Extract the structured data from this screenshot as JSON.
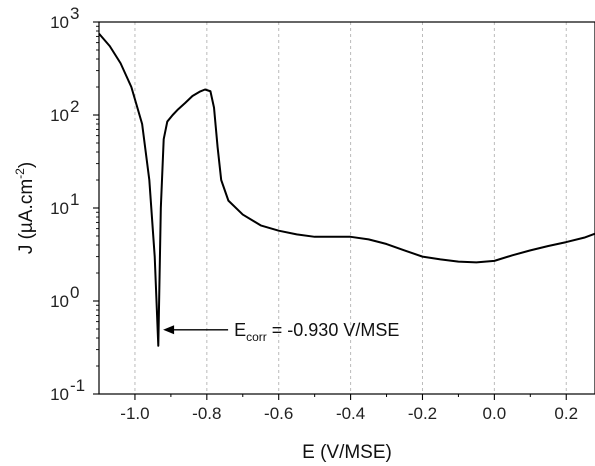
{
  "chart_data": {
    "type": "line",
    "xlabel": "E (V/MSE)",
    "ylabel": "J (µA.cm⁻²)",
    "ylabel_base": "J (µA.cm",
    "ylabel_exp": "-2",
    "ylabel_tail": ")",
    "yscale": "log",
    "xlim": [
      -1.1,
      0.28
    ],
    "ylim": [
      0.1,
      1000
    ],
    "grid": "vertical-dashed",
    "x_ticks": [
      -1.0,
      -0.8,
      -0.6,
      -0.4,
      -0.2,
      0.0,
      0.2
    ],
    "x_tick_labels": [
      "-1.0",
      "-0.8",
      "-0.6",
      "-0.4",
      "-0.2",
      "0.0",
      "0.2"
    ],
    "y_ticks": [
      {
        "value": 0.1,
        "base": "10",
        "exp": "-1"
      },
      {
        "value": 1,
        "base": "10",
        "exp": "0"
      },
      {
        "value": 10,
        "base": "10",
        "exp": "1"
      },
      {
        "value": 100,
        "base": "10",
        "exp": "2"
      },
      {
        "value": 1000,
        "base": "10",
        "exp": "3"
      }
    ],
    "series": [
      {
        "color": "#000000",
        "points": [
          [
            -1.1,
            750
          ],
          [
            -1.07,
            550
          ],
          [
            -1.04,
            360
          ],
          [
            -1.01,
            200
          ],
          [
            -0.98,
            80
          ],
          [
            -0.96,
            20
          ],
          [
            -0.945,
            3
          ],
          [
            -0.935,
            0.33
          ],
          [
            -0.928,
            10
          ],
          [
            -0.92,
            55
          ],
          [
            -0.91,
            85
          ],
          [
            -0.895,
            100
          ],
          [
            -0.88,
            115
          ],
          [
            -0.86,
            135
          ],
          [
            -0.84,
            160
          ],
          [
            -0.82,
            178
          ],
          [
            -0.805,
            188
          ],
          [
            -0.79,
            180
          ],
          [
            -0.78,
            120
          ],
          [
            -0.77,
            45
          ],
          [
            -0.76,
            20
          ],
          [
            -0.74,
            12
          ],
          [
            -0.7,
            8.5
          ],
          [
            -0.65,
            6.5
          ],
          [
            -0.6,
            5.7
          ],
          [
            -0.55,
            5.2
          ],
          [
            -0.5,
            4.9
          ],
          [
            -0.45,
            4.9
          ],
          [
            -0.4,
            4.9
          ],
          [
            -0.35,
            4.6
          ],
          [
            -0.3,
            4.1
          ],
          [
            -0.25,
            3.5
          ],
          [
            -0.2,
            3.0
          ],
          [
            -0.15,
            2.8
          ],
          [
            -0.1,
            2.65
          ],
          [
            -0.05,
            2.6
          ],
          [
            0.0,
            2.7
          ],
          [
            0.05,
            3.1
          ],
          [
            0.1,
            3.5
          ],
          [
            0.15,
            3.9
          ],
          [
            0.2,
            4.3
          ],
          [
            0.25,
            4.8
          ],
          [
            0.28,
            5.3
          ]
        ]
      }
    ],
    "annotation": {
      "base": "E",
      "sub": "corr",
      "text": " = -0.930 V/MSE",
      "x": -0.93,
      "y": 0.49
    }
  }
}
